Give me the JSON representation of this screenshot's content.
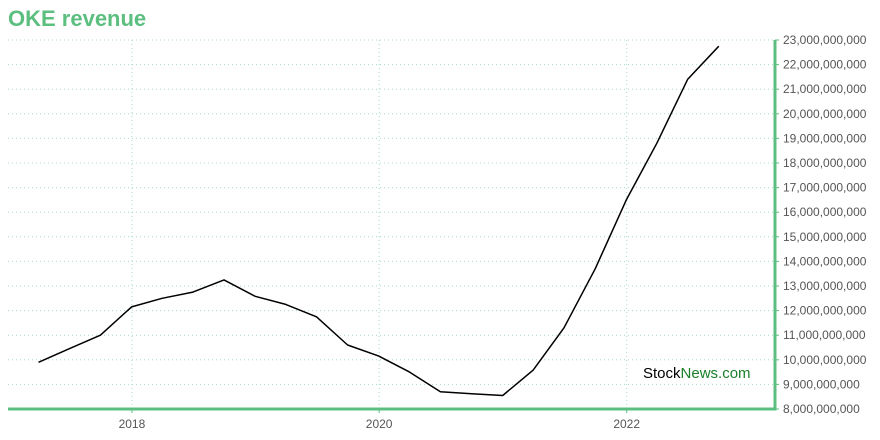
{
  "chart_data": {
    "type": "line",
    "title": "OKE revenue",
    "xlabel": "",
    "ylabel": "",
    "x": [
      "2017-03-31",
      "2017-06-30",
      "2017-09-30",
      "2017-12-31",
      "2018-03-31",
      "2018-06-30",
      "2018-09-30",
      "2018-12-31",
      "2019-03-31",
      "2019-06-30",
      "2019-09-30",
      "2019-12-31",
      "2020-03-31",
      "2020-06-30",
      "2020-09-30",
      "2020-12-31",
      "2021-03-31",
      "2021-06-30",
      "2021-09-30",
      "2021-12-31",
      "2022-03-31",
      "2022-06-30",
      "2022-09-30"
    ],
    "series": [
      {
        "values": [
          9900000000,
          10450000000,
          11000000000,
          12150000000,
          12500000000,
          12750000000,
          13250000000,
          12580000000,
          12250000000,
          11750000000,
          10600000000,
          10150000000,
          9500000000,
          8700000000,
          8620000000,
          8550000000,
          9580000000,
          11300000000,
          13700000000,
          16500000000,
          18800000000,
          21400000000,
          22750000000
        ]
      }
    ],
    "xticks": [
      "2018",
      "2020",
      "2022"
    ],
    "xtick_dates": [
      "2018-01-01",
      "2020-01-01",
      "2022-01-01"
    ],
    "yticks": [
      "8,000,000,000",
      "9,000,000,000",
      "10,000,000,000",
      "11,000,000,000",
      "12,000,000,000",
      "13,000,000,000",
      "14,000,000,000",
      "15,000,000,000",
      "16,000,000,000",
      "17,000,000,000",
      "18,000,000,000",
      "19,000,000,000",
      "20,000,000,000",
      "21,000,000,000",
      "22,000,000,000",
      "23,000,000,000"
    ],
    "xlim": [
      "2016-12-31",
      "2023-03-15"
    ],
    "ylim": [
      8000000000,
      23000000000
    ],
    "grid": true,
    "colors": {
      "line": "#000000",
      "axis": "#5cbf7f",
      "grid": "#a8d8c8",
      "title": "#5cbf7f"
    }
  },
  "watermark": {
    "part1": "Stock",
    "part2": "News.com"
  }
}
